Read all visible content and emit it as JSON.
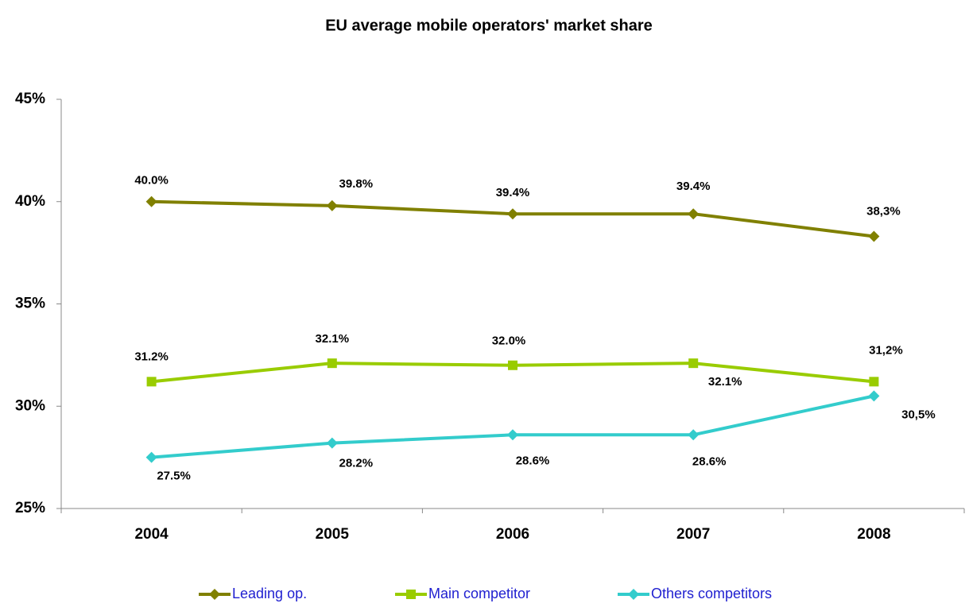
{
  "chart_data": {
    "type": "line",
    "title": "EU average mobile operators' market share",
    "categories": [
      "2004",
      "2005",
      "2006",
      "2007",
      "2008"
    ],
    "series": [
      {
        "name": "Leading op.",
        "color": "#808000",
        "marker": "diamond",
        "values": [
          40.0,
          39.8,
          39.4,
          39.4,
          38.3
        ],
        "value_labels": [
          "40.0%",
          "39.8%",
          "39.4%",
          "39.4%",
          "38,3%"
        ]
      },
      {
        "name": "Main competitor",
        "color": "#99cc00",
        "marker": "square",
        "values": [
          31.2,
          32.1,
          32.0,
          32.1,
          31.2
        ],
        "value_labels": [
          "31.2%",
          "32.1%",
          "32.0%",
          "32.1%",
          "31,2%"
        ]
      },
      {
        "name": "Others competitors",
        "color": "#33cccc",
        "marker": "diamond",
        "values": [
          27.5,
          28.2,
          28.6,
          28.6,
          30.5
        ],
        "value_labels": [
          "27.5%",
          "28.2%",
          "28.6%",
          "28.6%",
          "30,5%"
        ]
      }
    ],
    "ylim": [
      25,
      45
    ],
    "yticks": [
      {
        "value": 25,
        "label": "25%"
      },
      {
        "value": 30,
        "label": "30%"
      },
      {
        "value": 35,
        "label": "35%"
      },
      {
        "value": 40,
        "label": "40%"
      },
      {
        "value": 45,
        "label": "45%"
      }
    ],
    "legend": "bottom"
  }
}
